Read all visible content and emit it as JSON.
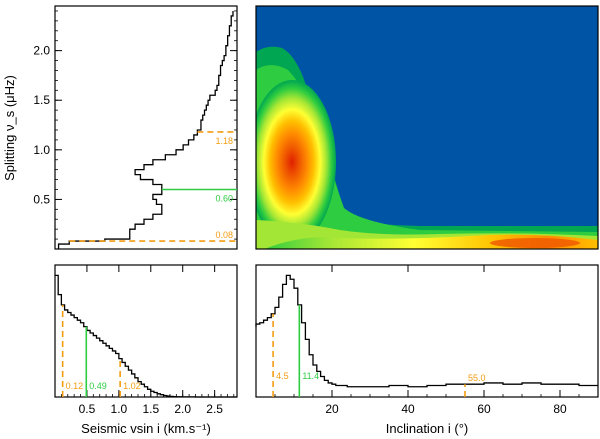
{
  "chart_data": [
    {
      "type": "line",
      "orientation": "horizontal-histogram",
      "xlabel": "",
      "ylabel": "Splitting ν_s (μHz)",
      "ylim": [
        0.0,
        2.45
      ],
      "yticks": [
        "0.5",
        "1.0",
        "1.5",
        "2.0"
      ],
      "y": [
        0.05,
        0.08,
        0.1,
        0.15,
        0.2,
        0.25,
        0.3,
        0.35,
        0.4,
        0.45,
        0.5,
        0.55,
        0.6,
        0.65,
        0.7,
        0.75,
        0.8,
        0.85,
        0.9,
        0.95,
        1.0,
        1.05,
        1.1,
        1.15,
        1.2,
        1.25,
        1.3,
        1.35,
        1.4,
        1.45,
        1.5,
        1.55,
        1.6,
        1.65,
        1.7,
        1.75,
        1.8,
        1.85,
        1.9,
        1.95,
        2.0,
        2.05,
        2.1,
        2.15,
        2.2,
        2.25,
        2.3,
        2.35,
        2.4
      ],
      "values": [
        0.02,
        0.08,
        0.28,
        0.42,
        0.42,
        0.45,
        0.5,
        0.55,
        0.6,
        0.6,
        0.57,
        0.55,
        0.6,
        0.6,
        0.55,
        0.48,
        0.45,
        0.5,
        0.55,
        0.62,
        0.68,
        0.72,
        0.75,
        0.78,
        0.8,
        0.82,
        0.82,
        0.83,
        0.84,
        0.85,
        0.86,
        0.87,
        0.9,
        0.91,
        0.92,
        0.92,
        0.93,
        0.93,
        0.94,
        0.95,
        0.96,
        0.96,
        0.97,
        0.97,
        0.98,
        0.98,
        0.99,
        0.99,
        1.0
      ],
      "annotations": [
        {
          "label": "1.18",
          "y": 1.18,
          "style": "dashed",
          "color": "#f39c12"
        },
        {
          "label": "0.60",
          "y": 0.6,
          "style": "solid",
          "color": "#2ecc40"
        },
        {
          "label": "0.08",
          "y": 0.08,
          "style": "dashed",
          "color": "#f39c12"
        }
      ]
    },
    {
      "type": "heatmap",
      "xlabel": "",
      "ylabel": "",
      "xlim": [
        0,
        90
      ],
      "ylim": [
        0.0,
        2.45
      ],
      "colors": {
        "background": "#0054a6",
        "scale": [
          "#0054a6",
          "#00a651",
          "#2ecc40",
          "#a3e635",
          "#ffff33",
          "#ffc000",
          "#ff8c00",
          "#f05a00",
          "#e02000"
        ]
      },
      "peaks": [
        {
          "x": 10,
          "y": 0.85,
          "level": "max"
        },
        {
          "x": 65,
          "y": 0.08,
          "level": "high"
        }
      ]
    },
    {
      "type": "line",
      "xlabel": "Seismic vsin i (km.s⁻¹)",
      "ylabel": "",
      "xlim": [
        0.0,
        2.85
      ],
      "xticks": [
        "0.5",
        "1.0",
        "1.5",
        "2.0",
        "2.5"
      ],
      "x": [
        0.05,
        0.1,
        0.15,
        0.2,
        0.25,
        0.3,
        0.35,
        0.4,
        0.45,
        0.5,
        0.55,
        0.6,
        0.65,
        0.7,
        0.75,
        0.8,
        0.85,
        0.9,
        0.95,
        1.0,
        1.05,
        1.1,
        1.15,
        1.2,
        1.25,
        1.3,
        1.35,
        1.4,
        1.45,
        1.5,
        1.55,
        1.6,
        1.65,
        1.7,
        1.75,
        1.8,
        1.85,
        1.9,
        2.0,
        2.2,
        2.5,
        2.85
      ],
      "values": [
        0.95,
        0.8,
        0.72,
        0.68,
        0.66,
        0.64,
        0.62,
        0.6,
        0.58,
        0.55,
        0.52,
        0.5,
        0.48,
        0.46,
        0.44,
        0.42,
        0.4,
        0.38,
        0.36,
        0.34,
        0.3,
        0.27,
        0.24,
        0.21,
        0.18,
        0.15,
        0.12,
        0.1,
        0.08,
        0.06,
        0.045,
        0.035,
        0.025,
        0.018,
        0.012,
        0.008,
        0.005,
        0.003,
        0.002,
        0.001,
        0.0,
        0.0
      ],
      "annotations": [
        {
          "label": "0.12",
          "x": 0.12,
          "style": "dashed",
          "color": "#f39c12"
        },
        {
          "label": "0.49",
          "x": 0.49,
          "style": "solid",
          "color": "#2ecc40"
        },
        {
          "label": "1.02",
          "x": 1.02,
          "style": "dashed",
          "color": "#f39c12"
        }
      ]
    },
    {
      "type": "line",
      "xlabel": "Inclination i (°)",
      "ylabel": "",
      "xlim": [
        0,
        90
      ],
      "xticks": [
        "20",
        "40",
        "60",
        "80"
      ],
      "x": [
        0,
        1,
        2,
        3,
        4,
        5,
        6,
        7,
        8,
        9,
        10,
        11,
        12,
        13,
        14,
        15,
        16,
        17,
        18,
        19,
        20,
        21,
        22,
        24,
        26,
        30,
        35,
        40,
        45,
        50,
        55,
        60,
        65,
        70,
        75,
        80,
        85,
        90
      ],
      "values": [
        0.55,
        0.57,
        0.58,
        0.6,
        0.62,
        0.65,
        0.7,
        0.78,
        0.88,
        0.95,
        0.92,
        0.85,
        0.72,
        0.58,
        0.45,
        0.33,
        0.25,
        0.2,
        0.16,
        0.13,
        0.11,
        0.1,
        0.09,
        0.09,
        0.08,
        0.08,
        0.08,
        0.09,
        0.08,
        0.09,
        0.1,
        0.1,
        0.11,
        0.1,
        0.11,
        0.1,
        0.1,
        0.09
      ],
      "annotations": [
        {
          "label": "4.5",
          "x": 4.5,
          "style": "dashed",
          "color": "#f39c12"
        },
        {
          "label": "11.4",
          "x": 11.4,
          "style": "solid",
          "color": "#2ecc40"
        },
        {
          "label": "55.0",
          "x": 55.0,
          "style": "dashed",
          "color": "#f39c12"
        }
      ]
    }
  ]
}
